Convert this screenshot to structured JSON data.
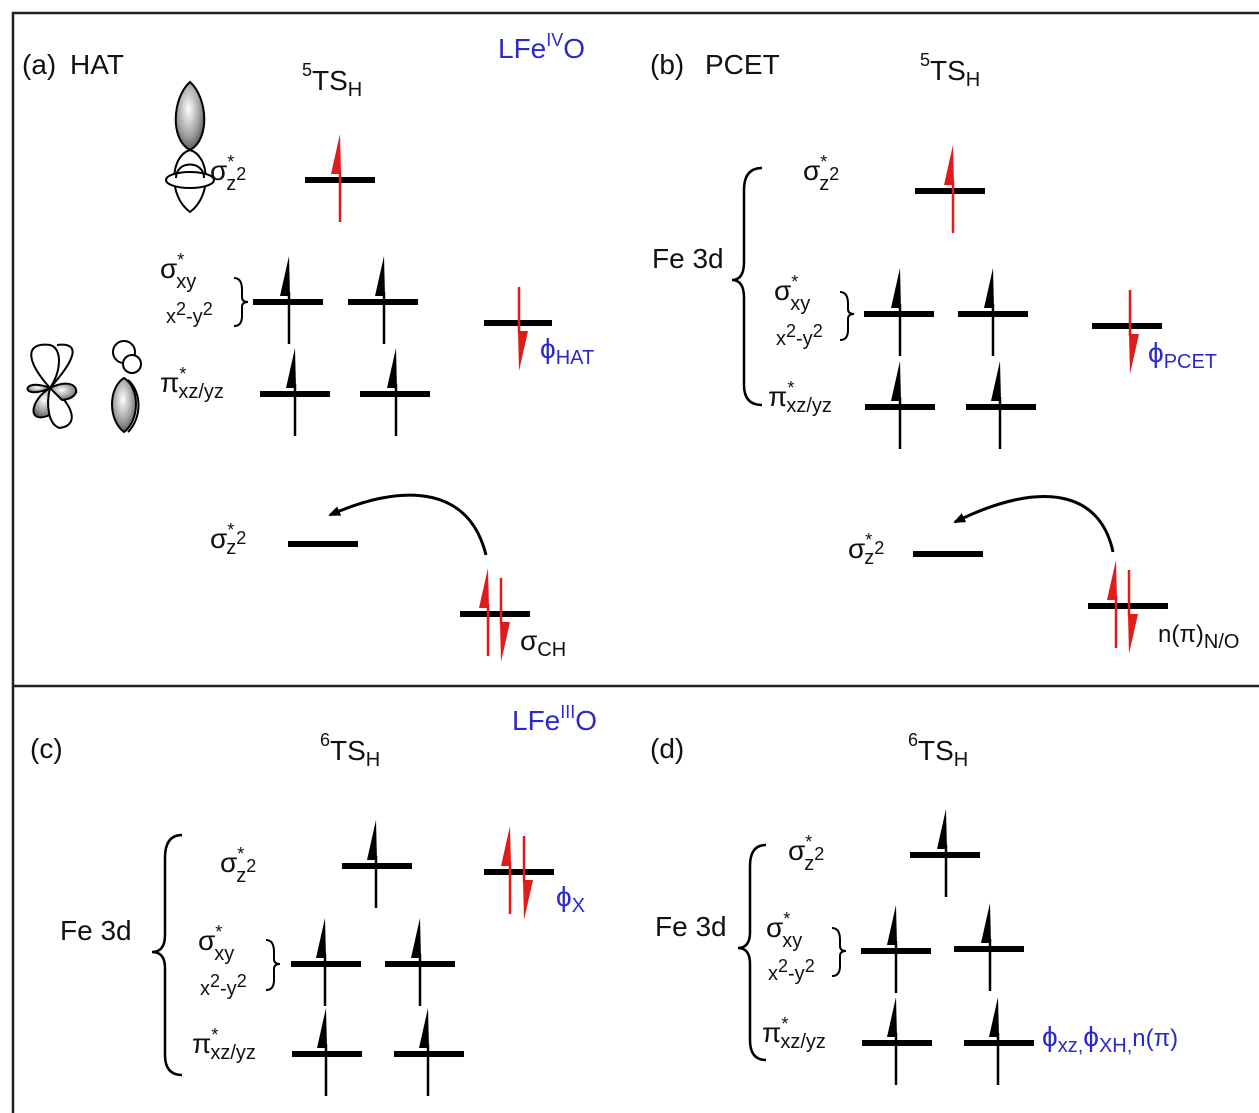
{
  "colors": {
    "electron_spin": "#e01b1b",
    "accent_label": "#2a2acc",
    "ink": "#000000"
  },
  "icons": [
    "dz2-orbital-lobes-icon",
    "d-orbital-clover-icon",
    "p-orbital-lobes-icon"
  ],
  "panels": {
    "a": {
      "tag": "(a)",
      "title": "HAT",
      "state": "TS",
      "state_sup": "5",
      "state_sub": "H"
    },
    "b": {
      "tag": "(b)",
      "title": "PCET",
      "state": "TS",
      "state_sup": "5",
      "state_sub": "H"
    },
    "c": {
      "tag": "(c)",
      "state": "TS",
      "state_sup": "6",
      "state_sub": "H"
    },
    "d": {
      "tag": "(d)",
      "state": "TS",
      "state_sup": "6",
      "state_sub": "H"
    }
  },
  "section_labels": {
    "top": {
      "base": "LFe",
      "sup": "IV",
      "tail": "O"
    },
    "bottom": {
      "base": "LFe",
      "sup": "III",
      "tail": "O"
    }
  },
  "orbitals": {
    "sigma": "σ",
    "pi": "π",
    "star": "*",
    "z2": "z",
    "z2_exp": "2",
    "xy": "xy",
    "x2y2_x": "x",
    "x2y2_exp1": "2",
    "x2y2_mid": "-y",
    "x2y2_exp2": "2",
    "xzyz": "xz/yz",
    "fe3d": "Fe 3d"
  },
  "extra_orbitals": {
    "phi": "ϕ",
    "hat": "HAT",
    "pcet": "PCET",
    "x": "X",
    "sigma_ch": "CH",
    "n_pi": "n(π)",
    "n_pi_sub": "N/O",
    "d_combo_1": "xz,",
    "d_combo_2": "XH,",
    "d_combo_tail": "n(π)"
  }
}
